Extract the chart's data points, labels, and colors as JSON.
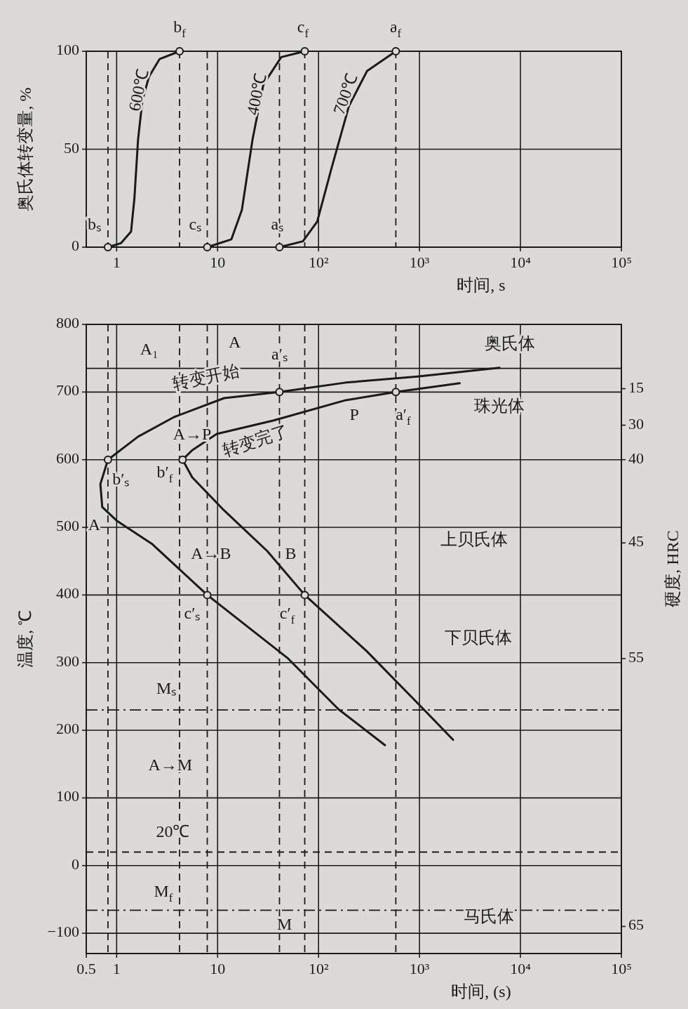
{
  "chart_data": [
    {
      "type": "line",
      "xlabel": "时间, s",
      "ylabel": "奥氏体转变量, %",
      "log": "x",
      "grid": true,
      "xlim": [
        0.5,
        100000
      ],
      "xticks": [
        1,
        10,
        {
          "value": 100,
          "label": "10²"
        },
        {
          "value": 1000,
          "label": "10³"
        },
        {
          "value": 10000,
          "label": "10⁴"
        },
        {
          "value": 100000,
          "label": "10⁵"
        }
      ],
      "ylim": [
        0,
        100
      ],
      "yticks": [
        0,
        50,
        100
      ],
      "series": [
        {
          "color": "#1a1a1a",
          "x": [
            0.82,
            1.1,
            1.39,
            1.5,
            1.63,
            1.8,
            2.09,
            2.66,
            4.2
          ],
          "values": [
            0,
            2,
            8,
            25,
            55,
            75,
            87,
            96,
            100
          ]
        },
        {
          "color": "#1a1a1a",
          "x": [
            7.9,
            13.7,
            17.4,
            22.2,
            28.4,
            42.7,
            73
          ],
          "values": [
            0,
            4,
            19,
            55,
            83,
            97,
            100
          ]
        },
        {
          "color": "#1a1a1a",
          "x": [
            41,
            70,
            97,
            134,
            200,
            303,
            583
          ],
          "values": [
            0,
            3,
            13,
            40,
            72,
            90,
            100
          ]
        },
        {
          "type": "scatter",
          "marker": "circle",
          "color": "#1a1a1a",
          "x": [
            0.82,
            4.2,
            7.9,
            73,
            41,
            583
          ],
          "values": [
            0,
            100,
            0,
            100,
            0,
            100
          ]
        }
      ],
      "ref_lines": [
        {
          "axis": "x",
          "value": 0.82,
          "line_style": "dashed"
        },
        {
          "axis": "x",
          "value": 4.2,
          "line_style": "dashed"
        },
        {
          "axis": "x",
          "value": 7.9,
          "line_style": "dashed"
        },
        {
          "axis": "x",
          "value": 41,
          "line_style": "dashed"
        },
        {
          "axis": "x",
          "value": 73,
          "line_style": "dashed"
        },
        {
          "axis": "x",
          "value": 583,
          "line_style": "dashed"
        }
      ],
      "annotations": [
        "bₛ",
        "b$_{f}$",
        "cₛ",
        "c$_{f}$",
        "aₛ",
        "a$_{f}$",
        "600℃",
        "400℃",
        "700℃"
      ]
    },
    {
      "type": "line",
      "xlabel": "时间, (s)",
      "ylabel": "温度, ℃",
      "y2label": "硬度, HRC",
      "log": "x",
      "grid": true,
      "xlim": [
        0.5,
        100000
      ],
      "xticks": [
        0.5,
        1,
        10,
        {
          "value": 100,
          "label": "10²"
        },
        {
          "value": 1000,
          "label": "10³"
        },
        {
          "value": 10000,
          "label": "10⁴"
        },
        {
          "value": 100000,
          "label": "10⁵"
        }
      ],
      "ylim": [
        -130,
        800
      ],
      "yticks": [
        -100,
        0,
        100,
        200,
        300,
        400,
        500,
        600,
        700,
        800
      ],
      "series": [
        {
          "color": "#1a1a1a",
          "x": [
            6200,
            955,
            186,
            41,
            11.6,
            3.7,
            1.63,
            0.82,
            0.69,
            0.72,
            1.0,
            2.26,
            7.9,
            50,
            158,
            455
          ],
          "values": [
            736,
            723,
            714,
            700,
            691,
            663,
            634,
            600,
            564,
            530,
            510,
            475,
            400,
            306,
            231,
            178
          ]
        },
        {
          "color": "#1a1a1a",
          "x": [
            2500,
            583,
            186,
            36,
            9.8,
            5.6,
            4.5,
            5.6,
            11.6,
            31,
            73,
            300,
            1100,
            2150
          ],
          "values": [
            713,
            700,
            688,
            658,
            638,
            614,
            600,
            574,
            525,
            465,
            400,
            317,
            231,
            186
          ]
        },
        {
          "type": "scatter",
          "marker": "circle",
          "color": "#1a1a1a",
          "x": [
            41,
            583,
            0.82,
            4.5,
            7.9,
            73
          ],
          "values": [
            700,
            700,
            600,
            600,
            400,
            400
          ]
        }
      ],
      "ref_lines": [
        {
          "axis": "y",
          "value": 735,
          "line_style": "solid"
        },
        {
          "axis": "y",
          "value": 230,
          "line_style": "dashdot"
        },
        {
          "axis": "y",
          "value": 20,
          "line_style": "dashed"
        },
        {
          "axis": "y",
          "value": -66,
          "line_style": "dashdot"
        },
        {
          "axis": "x",
          "value": 0.82,
          "line_style": "dashed"
        },
        {
          "axis": "x",
          "value": 4.2,
          "line_style": "dashed"
        },
        {
          "axis": "x",
          "value": 7.9,
          "line_style": "dashed"
        },
        {
          "axis": "x",
          "value": 41,
          "line_style": "dashed"
        },
        {
          "axis": "x",
          "value": 73,
          "line_style": "dashed"
        },
        {
          "axis": "x",
          "value": 583,
          "line_style": "dashed"
        }
      ],
      "annotations": [
        "A₁",
        "A",
        "奥氏体",
        "转变开始",
        "a′ₛ",
        "珠光体",
        "A→P",
        "P",
        "a′$_{f}$",
        "转变完了",
        "b′ₛ",
        "b′$_{f}$",
        "A",
        "上贝氏体",
        "A→B",
        "B",
        "c′ₛ",
        "c′$_{f}$",
        "下贝氏体",
        "Mₛ",
        "A→M",
        "20℃",
        "M$_{f}$",
        "M",
        "马氏体",
        "15",
        "30",
        "40",
        "45",
        "55",
        "65"
      ]
    }
  ]
}
